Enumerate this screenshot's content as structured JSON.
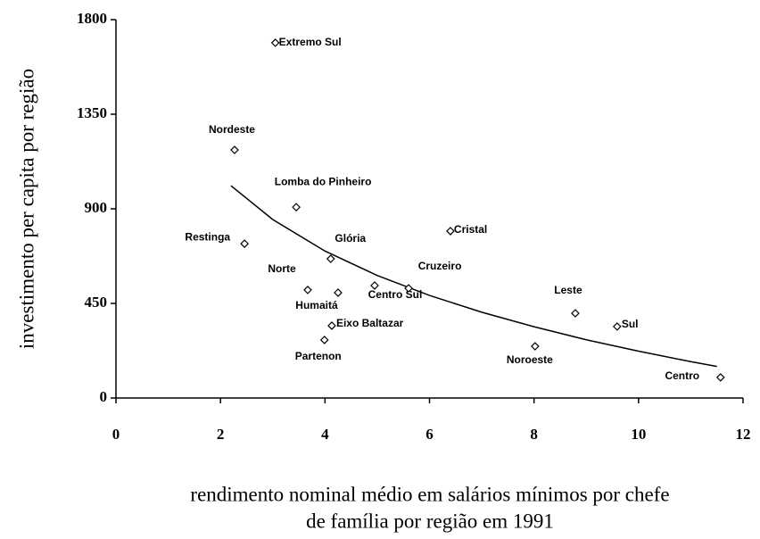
{
  "chart_data": {
    "type": "scatter",
    "xlabel": [
      "rendimento nominal médio em salários mínimos por chefe",
      "de família por região em 1991"
    ],
    "ylabel": "investimento per capita por região",
    "xlim": [
      0,
      12
    ],
    "xticks": [
      0,
      2,
      4,
      6,
      8,
      10,
      12
    ],
    "ylim": [
      0,
      1800
    ],
    "yticks": [
      0,
      450,
      900,
      1350,
      1800
    ],
    "color": "#000000",
    "labels": [
      "Extremo Sul",
      "Nordeste",
      "Lomba do Pinheiro",
      "Restinga",
      "Glória",
      "Norte",
      "Humaitá",
      "Centro Sul",
      "Cruzeiro",
      "Cristal",
      "Eixo Baltazar",
      "Partenon",
      "Leste",
      "Sul",
      "Noroeste",
      "Centro"
    ],
    "x": [
      3.05,
      2.27,
      3.45,
      2.46,
      4.11,
      3.67,
      4.25,
      4.95,
      5.6,
      6.4,
      4.13,
      3.99,
      8.79,
      9.59,
      8.02,
      11.57
    ],
    "values": [
      1690,
      1180,
      908,
      734,
      662,
      514,
      501,
      535,
      522,
      794,
      344,
      276,
      403,
      340,
      246,
      98
    ],
    "trendline": {
      "x": [
        2.2,
        3,
        4,
        5,
        6,
        7,
        8,
        9,
        10,
        11,
        11.5
      ],
      "values": [
        1010,
        849,
        699,
        583,
        488,
        408,
        339,
        277,
        223,
        173,
        150
      ]
    }
  }
}
